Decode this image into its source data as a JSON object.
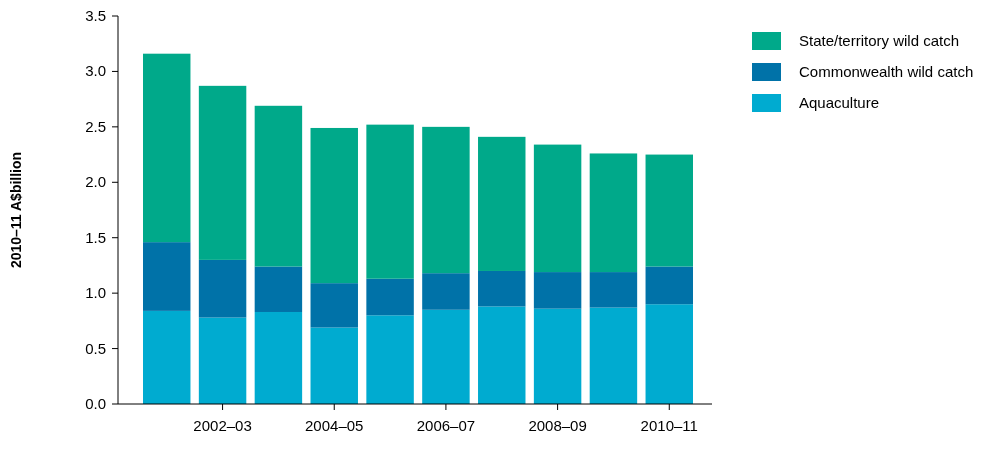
{
  "chart_data": {
    "type": "bar",
    "stacked": true,
    "ylabel": "2010–11 A$billion",
    "categories": [
      null,
      "2002–03",
      null,
      "2004–05",
      null,
      "2006–07",
      null,
      "2008–09",
      null,
      "2010–11"
    ],
    "series": [
      {
        "name": "Aquaculture",
        "color": "#00abd0",
        "values": [
          0.84,
          0.78,
          0.83,
          0.69,
          0.8,
          0.85,
          0.88,
          0.86,
          0.87,
          0.9
        ]
      },
      {
        "name": "Commonwealth wild catch",
        "color": "#0072a8",
        "values": [
          0.62,
          0.52,
          0.41,
          0.4,
          0.33,
          0.33,
          0.32,
          0.33,
          0.32,
          0.34
        ]
      },
      {
        "name": "State/territory wild catch",
        "color": "#00a98a",
        "values": [
          1.7,
          1.57,
          1.45,
          1.4,
          1.39,
          1.32,
          1.21,
          1.15,
          1.07,
          1.01
        ]
      }
    ],
    "ylim": [
      0,
      3.5
    ],
    "yticks": [
      {
        "value": 0,
        "label": "0.0"
      },
      {
        "value": 0.5,
        "label": "0.5"
      },
      {
        "value": 1,
        "label": "1.0"
      },
      {
        "value": 1.5,
        "label": "1.5"
      },
      {
        "value": 2,
        "label": "2.0"
      },
      {
        "value": 2.5,
        "label": "2.5"
      },
      {
        "value": 3,
        "label": "3.0"
      },
      {
        "value": 3.5,
        "label": "3.5"
      }
    ],
    "grid": false,
    "legend": "top right"
  }
}
